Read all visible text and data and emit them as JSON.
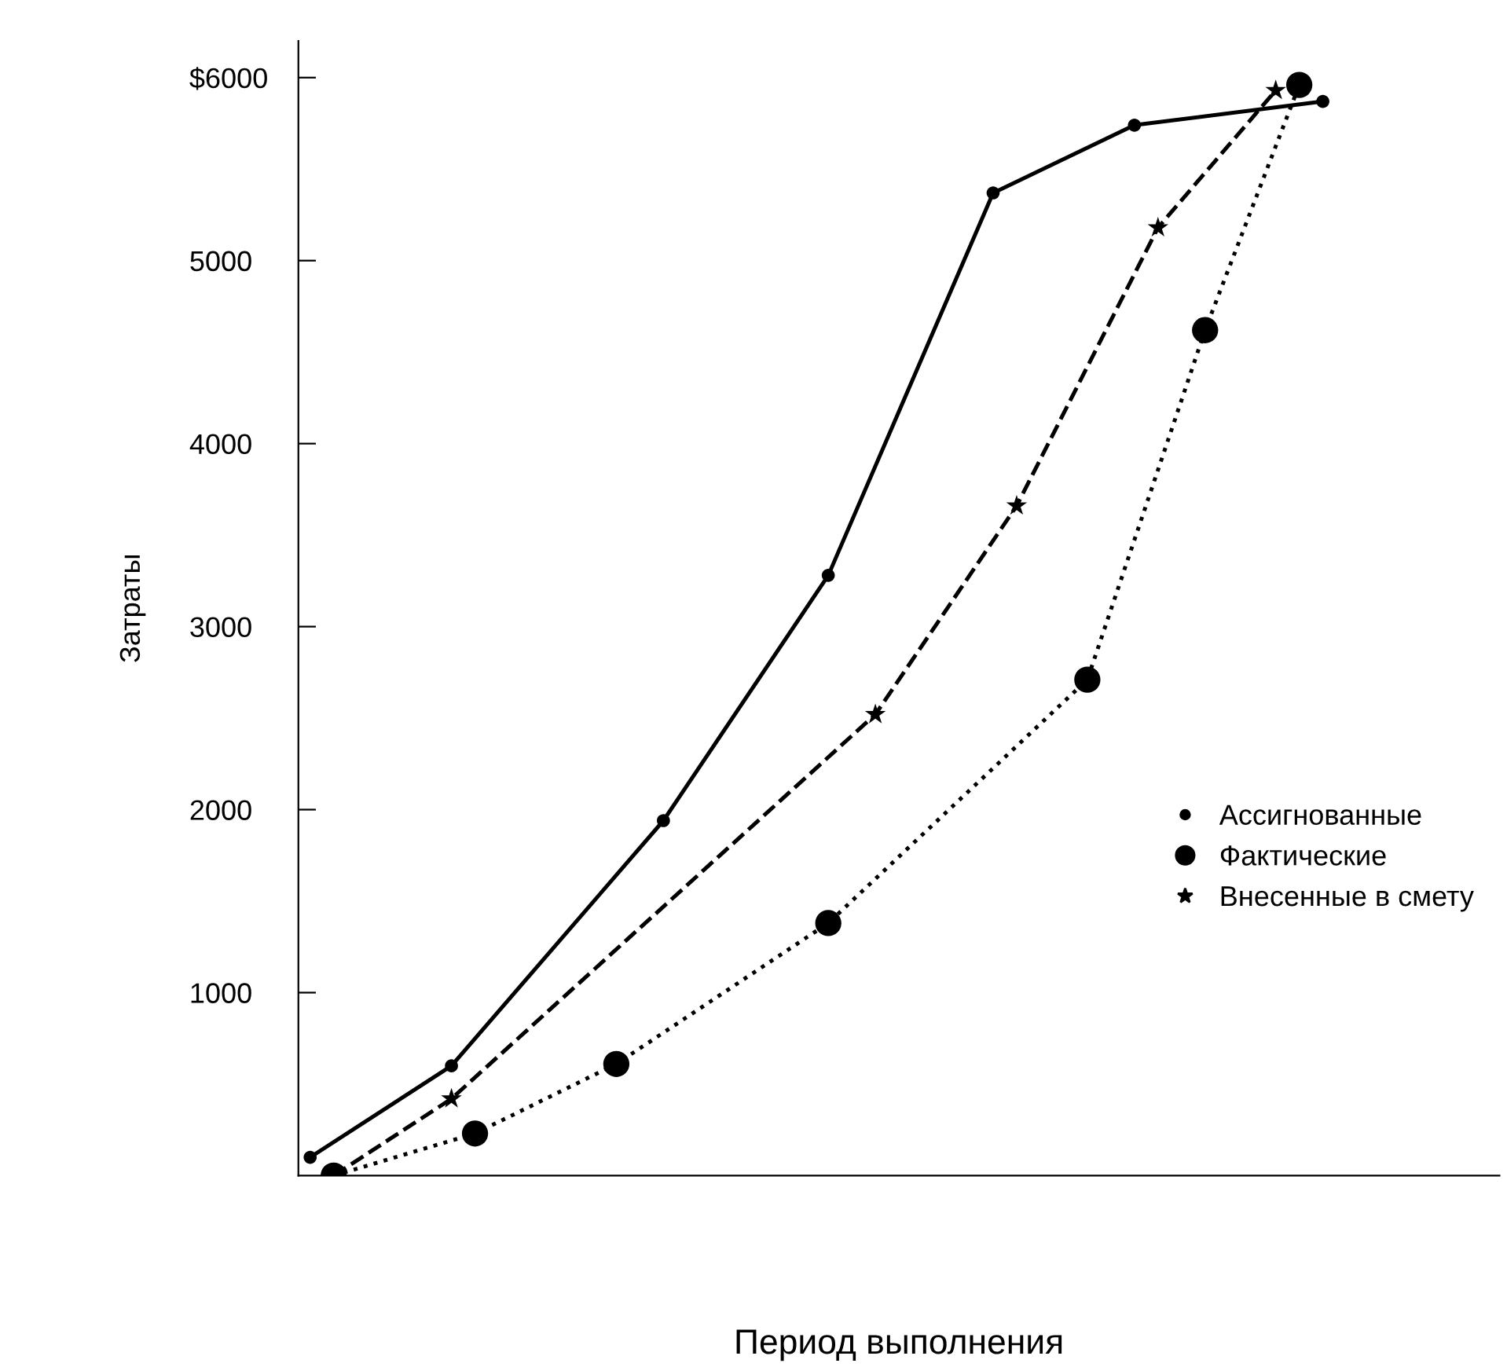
{
  "chart_data": {
    "type": "line",
    "xlabel": "Период выполнения",
    "ylabel": "Затраты",
    "categories": [
      null,
      null,
      null,
      null,
      null,
      null,
      null,
      null,
      null,
      null,
      null,
      null,
      null,
      null,
      null,
      null,
      null,
      null,
      null,
      null,
      null,
      null,
      null,
      null,
      null,
      null,
      null,
      null,
      null,
      null,
      null,
      null,
      null,
      null,
      null,
      null,
      null,
      null,
      null,
      null,
      null,
      null,
      null,
      null,
      null,
      null,
      null,
      null,
      null,
      null,
      null
    ],
    "ylim": [
      0,
      6200
    ],
    "yticks": [
      {
        "value": 1000,
        "label": "1000"
      },
      {
        "value": 2000,
        "label": "2000"
      },
      {
        "value": 3000,
        "label": "3000"
      },
      {
        "value": 4000,
        "label": "4000"
      },
      {
        "value": 5000,
        "label": "5000"
      },
      {
        "value": 6000,
        "label": "$6000"
      }
    ],
    "tick_labels": "y",
    "legend": "right",
    "grid": false,
    "series": [
      {
        "name": "Ассигнованные",
        "color": "#000000",
        "marker": "circle",
        "line_style": "solid",
        "values": [
          100,
          null,
          null,
          null,
          null,
          null,
          600,
          null,
          null,
          null,
          null,
          null,
          null,
          null,
          null,
          1940,
          null,
          null,
          null,
          null,
          null,
          null,
          3280,
          null,
          null,
          null,
          null,
          null,
          null,
          5370,
          null,
          null,
          null,
          null,
          null,
          5740,
          null,
          null,
          null,
          null,
          null,
          null,
          null,
          5870,
          null,
          null,
          null,
          null,
          null,
          null,
          null
        ]
      },
      {
        "name": "Фактические",
        "color": "#000000",
        "marker": "circle",
        "line_style": "dotted",
        "values": [
          null,
          0,
          null,
          null,
          null,
          null,
          null,
          230,
          null,
          null,
          null,
          null,
          null,
          610,
          null,
          null,
          null,
          null,
          null,
          null,
          null,
          null,
          1380,
          null,
          null,
          null,
          null,
          null,
          null,
          null,
          null,
          null,
          null,
          2710,
          null,
          null,
          null,
          null,
          4620,
          null,
          null,
          null,
          5960,
          null,
          null,
          null,
          null,
          null,
          null,
          null,
          null
        ]
      },
      {
        "name": "Внесенные в смету",
        "color": "#000000",
        "marker": "star",
        "line_style": "dashed",
        "values": [
          null,
          0,
          null,
          null,
          null,
          null,
          420,
          null,
          null,
          null,
          null,
          null,
          null,
          null,
          null,
          null,
          null,
          null,
          null,
          null,
          null,
          null,
          null,
          null,
          2520,
          null,
          null,
          null,
          null,
          null,
          3660,
          null,
          null,
          null,
          null,
          null,
          5180,
          null,
          null,
          null,
          null,
          5930,
          null,
          null,
          null,
          null,
          null,
          null,
          null,
          null,
          null
        ]
      }
    ]
  }
}
